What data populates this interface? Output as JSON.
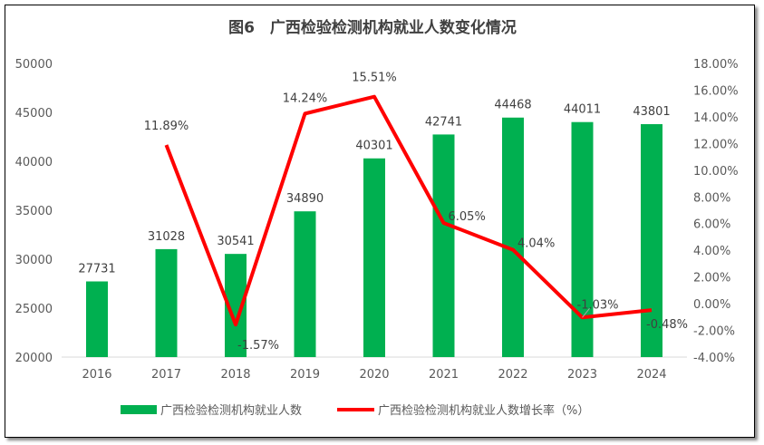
{
  "chart_data": {
    "type": "bar+line",
    "title": "图6　广西检验检测机构就业人数变化情况",
    "categories": [
      "2016",
      "2017",
      "2018",
      "2019",
      "2020",
      "2021",
      "2022",
      "2023",
      "2024"
    ],
    "series": [
      {
        "name": "广西检验检测机构就业人数",
        "type": "bar",
        "axis": "left",
        "color": "#00B050",
        "values": [
          27731,
          31028,
          30541,
          34890,
          40301,
          42741,
          44468,
          44011,
          43801
        ],
        "labels": [
          "27731",
          "31028",
          "30541",
          "34890",
          "40301",
          "42741",
          "44468",
          "44011",
          "43801"
        ]
      },
      {
        "name": "广西检验检测机构就业人数增长率（%）",
        "type": "line",
        "axis": "right",
        "color": "#FF0000",
        "values": [
          null,
          11.89,
          -1.57,
          14.24,
          15.51,
          6.05,
          4.04,
          -1.03,
          -0.48
        ],
        "labels": [
          "",
          "11.89%",
          "-1.57%",
          "14.24%",
          "15.51%",
          "6.05%",
          "4.04%",
          "-1.03%",
          "-0.48%"
        ]
      }
    ],
    "left_axis": {
      "min": 20000,
      "max": 50000,
      "step": 5000,
      "ticks": [
        "20000",
        "25000",
        "30000",
        "35000",
        "40000",
        "45000",
        "50000"
      ]
    },
    "right_axis": {
      "min": -4,
      "max": 18,
      "step": 2,
      "ticks": [
        "-4.00%",
        "-2.00%",
        "0.00%",
        "2.00%",
        "4.00%",
        "6.00%",
        "8.00%",
        "10.00%",
        "12.00%",
        "14.00%",
        "16.00%",
        "18.00%"
      ]
    },
    "grid": false,
    "legend": "bottom"
  }
}
